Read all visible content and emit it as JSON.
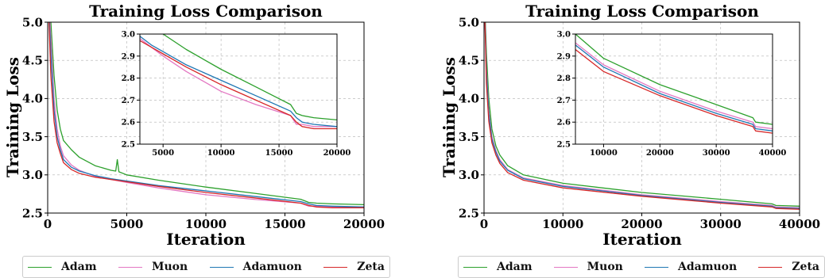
{
  "colors": {
    "Adam": "#2ca02c",
    "Muon": "#e377c2",
    "Adamuon": "#1f77b4",
    "Zeta": "#d62728"
  },
  "chart_data": [
    {
      "type": "line",
      "title": "Training Loss Comparison",
      "xlabel": "Iteration",
      "ylabel": "Training Loss",
      "xlim": [
        0,
        20000
      ],
      "ylim": [
        2.5,
        5.0
      ],
      "xticks": [
        0,
        5000,
        10000,
        15000,
        20000
      ],
      "yticks": [
        2.5,
        3.0,
        3.5,
        4.0,
        4.5,
        5.0
      ],
      "grid": true,
      "legend": "bottom",
      "series": [
        {
          "name": "Adam",
          "x": [
            0,
            200,
            400,
            600,
            800,
            1000,
            1500,
            2000,
            3000,
            4000,
            4300,
            4400,
            4500,
            5000,
            7000,
            10000,
            13000,
            16000,
            16500,
            17000,
            18000,
            20000
          ],
          "y": [
            5.5,
            5.0,
            4.3,
            3.85,
            3.6,
            3.45,
            3.33,
            3.23,
            3.12,
            3.06,
            3.05,
            3.2,
            3.04,
            3.0,
            2.93,
            2.84,
            2.76,
            2.68,
            2.64,
            2.63,
            2.62,
            2.61
          ]
        },
        {
          "name": "Muon",
          "x": [
            0,
            200,
            400,
            600,
            800,
            1000,
            1500,
            2000,
            3000,
            4000,
            5000,
            7000,
            10000,
            13000,
            16000,
            16500,
            17000,
            18000,
            20000
          ],
          "y": [
            5.5,
            4.8,
            4.0,
            3.6,
            3.38,
            3.25,
            3.13,
            3.06,
            2.98,
            2.94,
            2.9,
            2.83,
            2.74,
            2.68,
            2.63,
            2.59,
            2.59,
            2.58,
            2.58
          ]
        },
        {
          "name": "Adamuon",
          "x": [
            0,
            200,
            400,
            600,
            800,
            1000,
            1500,
            2000,
            3000,
            4000,
            5000,
            7000,
            10000,
            13000,
            16000,
            16500,
            17000,
            18000,
            20000
          ],
          "y": [
            5.5,
            4.6,
            3.85,
            3.5,
            3.33,
            3.2,
            3.1,
            3.05,
            2.99,
            2.95,
            2.92,
            2.86,
            2.79,
            2.72,
            2.65,
            2.62,
            2.6,
            2.59,
            2.58
          ]
        },
        {
          "name": "Zeta",
          "x": [
            0,
            200,
            400,
            600,
            800,
            1000,
            1500,
            2000,
            3000,
            4000,
            5000,
            7000,
            10000,
            13000,
            16000,
            16500,
            17000,
            18000,
            20000
          ],
          "y": [
            5.5,
            4.3,
            3.7,
            3.42,
            3.28,
            3.16,
            3.07,
            3.02,
            2.97,
            2.94,
            2.91,
            2.85,
            2.77,
            2.7,
            2.63,
            2.6,
            2.58,
            2.57,
            2.57
          ]
        }
      ],
      "inset": {
        "xlim": [
          3000,
          20000
        ],
        "ylim": [
          2.5,
          3.0
        ],
        "xticks": [
          5000,
          10000,
          15000,
          20000
        ],
        "yticks": [
          2.5,
          2.6,
          2.7,
          2.8,
          2.9,
          3.0
        ]
      }
    },
    {
      "type": "line",
      "title": "Training Loss Comparison",
      "xlabel": "Iteration",
      "ylabel": "Training Loss",
      "xlim": [
        0,
        40000
      ],
      "ylim": [
        2.5,
        5.0
      ],
      "xticks": [
        0,
        10000,
        20000,
        30000,
        40000
      ],
      "yticks": [
        2.5,
        3.0,
        3.5,
        4.0,
        4.5,
        5.0
      ],
      "grid": true,
      "legend": "bottom",
      "series": [
        {
          "name": "Adam",
          "x": [
            0,
            300,
            600,
            1000,
            1500,
            2000,
            3000,
            5000,
            10000,
            20000,
            30000,
            36500,
            37000,
            40000
          ],
          "y": [
            5.5,
            4.6,
            4.0,
            3.6,
            3.38,
            3.26,
            3.12,
            3.0,
            2.89,
            2.77,
            2.68,
            2.62,
            2.6,
            2.59
          ]
        },
        {
          "name": "Muon",
          "x": [
            0,
            300,
            600,
            1000,
            1500,
            2000,
            3000,
            5000,
            10000,
            20000,
            30000,
            36500,
            37000,
            40000
          ],
          "y": [
            5.5,
            4.4,
            3.85,
            3.5,
            3.32,
            3.2,
            3.07,
            2.96,
            2.86,
            2.74,
            2.65,
            2.6,
            2.58,
            2.57
          ]
        },
        {
          "name": "Adamuon",
          "x": [
            0,
            300,
            600,
            1000,
            1500,
            2000,
            3000,
            5000,
            10000,
            20000,
            30000,
            36500,
            37000,
            40000
          ],
          "y": [
            5.5,
            4.35,
            3.8,
            3.47,
            3.3,
            3.18,
            3.06,
            2.95,
            2.85,
            2.73,
            2.64,
            2.59,
            2.57,
            2.56
          ]
        },
        {
          "name": "Zeta",
          "x": [
            0,
            300,
            600,
            1000,
            1500,
            2000,
            3000,
            5000,
            10000,
            20000,
            30000,
            36500,
            37000,
            40000
          ],
          "y": [
            5.5,
            4.2,
            3.7,
            3.42,
            3.26,
            3.15,
            3.03,
            2.93,
            2.83,
            2.72,
            2.63,
            2.58,
            2.56,
            2.55
          ]
        }
      ],
      "inset": {
        "xlim": [
          5000,
          40000
        ],
        "ylim": [
          2.5,
          3.0
        ],
        "xticks": [
          10000,
          20000,
          30000,
          40000
        ],
        "yticks": [
          2.5,
          2.6,
          2.7,
          2.8,
          2.9,
          3.0
        ]
      }
    }
  ]
}
